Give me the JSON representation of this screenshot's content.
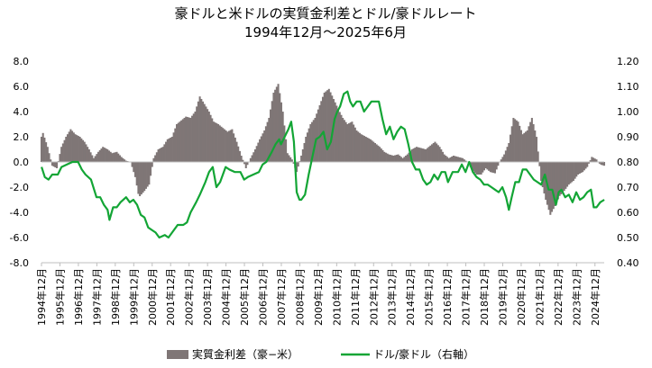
{
  "chart_data": {
    "type": "bar",
    "title": "豪ドルと米ドルの実質金利差とドル/豪ドルレート",
    "subtitle": "1994年12月～2025年6月",
    "left_axis": {
      "ylim": [
        -8,
        8
      ],
      "ticks": [
        "8.0",
        "6.0",
        "4.0",
        "2.0",
        "0.0",
        "-2.0",
        "-4.0",
        "-6.0",
        "-8.0"
      ],
      "tick_values": [
        8,
        6,
        4,
        2,
        0,
        -2,
        -4,
        -6,
        -8
      ]
    },
    "right_axis": {
      "ylim": [
        0.4,
        1.2
      ],
      "ticks": [
        "1.20",
        "1.10",
        "1.00",
        "0.90",
        "0.80",
        "0.70",
        "0.60",
        "0.50",
        "0.40"
      ],
      "tick_values": [
        1.2,
        1.1,
        1.0,
        0.9,
        0.8,
        0.7,
        0.6,
        0.5,
        0.4
      ]
    },
    "x_ticks": [
      "1994年12月",
      "1995年12月",
      "1996年12月",
      "1997年12月",
      "1998年12月",
      "1999年12月",
      "2000年12月",
      "2001年12月",
      "2002年12月",
      "2003年12月",
      "2004年12月",
      "2005年12月",
      "2006年12月",
      "2007年12月",
      "2008年12月",
      "2009年12月",
      "2010年12月",
      "2011年12月",
      "2012年12月",
      "2013年12月",
      "2014年12月",
      "2015年12月",
      "2016年12月",
      "2017年12月",
      "2018年12月",
      "2019年12月",
      "2020年12月",
      "2021年12月",
      "2022年12月",
      "2023年12月",
      "2024年12月"
    ],
    "x_start": 1994.917,
    "x_end": 2025.417,
    "grid": false,
    "legend_position": "bottom",
    "series": [
      {
        "name": "実質金利差（豪−米）",
        "type": "bar",
        "axis": "left",
        "color": "#7f7676",
        "points": [
          [
            1994.92,
            2.0
          ],
          [
            1995.0,
            2.3
          ],
          [
            1995.25,
            1.2
          ],
          [
            1995.5,
            -0.3
          ],
          [
            1995.75,
            -0.5
          ],
          [
            1996.0,
            1.2
          ],
          [
            1996.25,
            2.0
          ],
          [
            1996.5,
            2.6
          ],
          [
            1996.75,
            2.2
          ],
          [
            1997.0,
            2.0
          ],
          [
            1997.25,
            1.6
          ],
          [
            1997.5,
            1.0
          ],
          [
            1997.75,
            0.3
          ],
          [
            1998.0,
            0.8
          ],
          [
            1998.25,
            1.2
          ],
          [
            1998.5,
            1.0
          ],
          [
            1998.75,
            0.7
          ],
          [
            1999.0,
            0.8
          ],
          [
            1999.25,
            0.4
          ],
          [
            1999.5,
            0.1
          ],
          [
            1999.75,
            0.0
          ],
          [
            2000.0,
            -1.2
          ],
          [
            2000.2,
            -2.8
          ],
          [
            2000.5,
            -2.3
          ],
          [
            2000.75,
            -1.8
          ],
          [
            2001.0,
            0.3
          ],
          [
            2001.25,
            1.0
          ],
          [
            2001.5,
            1.2
          ],
          [
            2001.75,
            1.8
          ],
          [
            2002.0,
            2.0
          ],
          [
            2002.25,
            3.0
          ],
          [
            2002.5,
            3.3
          ],
          [
            2002.75,
            3.6
          ],
          [
            2003.0,
            3.5
          ],
          [
            2003.25,
            4.0
          ],
          [
            2003.5,
            5.2
          ],
          [
            2003.75,
            4.6
          ],
          [
            2004.0,
            4.0
          ],
          [
            2004.25,
            3.2
          ],
          [
            2004.5,
            3.0
          ],
          [
            2004.75,
            2.7
          ],
          [
            2005.0,
            2.4
          ],
          [
            2005.25,
            2.6
          ],
          [
            2005.5,
            1.6
          ],
          [
            2005.75,
            0.5
          ],
          [
            2006.0,
            -0.5
          ],
          [
            2006.25,
            0.3
          ],
          [
            2006.5,
            1.0
          ],
          [
            2006.75,
            1.8
          ],
          [
            2007.0,
            2.5
          ],
          [
            2007.25,
            3.5
          ],
          [
            2007.5,
            5.5
          ],
          [
            2007.75,
            6.2
          ],
          [
            2008.0,
            4.0
          ],
          [
            2008.25,
            0.7
          ],
          [
            2008.5,
            0.2
          ],
          [
            2008.75,
            -0.8
          ],
          [
            2009.0,
            0.5
          ],
          [
            2009.25,
            2.0
          ],
          [
            2009.5,
            3.0
          ],
          [
            2009.75,
            3.5
          ],
          [
            2010.0,
            4.5
          ],
          [
            2010.25,
            5.5
          ],
          [
            2010.5,
            5.8
          ],
          [
            2010.75,
            5.0
          ],
          [
            2011.0,
            4.2
          ],
          [
            2011.25,
            3.5
          ],
          [
            2011.5,
            3.0
          ],
          [
            2011.75,
            3.2
          ],
          [
            2012.0,
            2.5
          ],
          [
            2012.25,
            2.2
          ],
          [
            2012.5,
            2.0
          ],
          [
            2012.75,
            1.8
          ],
          [
            2013.0,
            1.5
          ],
          [
            2013.25,
            1.2
          ],
          [
            2013.5,
            0.8
          ],
          [
            2013.75,
            0.6
          ],
          [
            2014.0,
            0.5
          ],
          [
            2014.25,
            0.6
          ],
          [
            2014.5,
            0.3
          ],
          [
            2014.75,
            0.6
          ],
          [
            2015.0,
            1.0
          ],
          [
            2015.25,
            1.2
          ],
          [
            2015.5,
            1.1
          ],
          [
            2015.75,
            1.0
          ],
          [
            2016.0,
            1.3
          ],
          [
            2016.25,
            1.6
          ],
          [
            2016.5,
            1.2
          ],
          [
            2016.75,
            0.6
          ],
          [
            2017.0,
            0.3
          ],
          [
            2017.25,
            0.5
          ],
          [
            2017.5,
            0.4
          ],
          [
            2017.75,
            0.3
          ],
          [
            2018.0,
            0.0
          ],
          [
            2018.25,
            -0.6
          ],
          [
            2018.5,
            -1.0
          ],
          [
            2018.75,
            -1.0
          ],
          [
            2019.0,
            -0.5
          ],
          [
            2019.25,
            -0.8
          ],
          [
            2019.5,
            -0.9
          ],
          [
            2019.75,
            0.0
          ],
          [
            2020.0,
            0.6
          ],
          [
            2020.25,
            1.5
          ],
          [
            2020.5,
            3.5
          ],
          [
            2020.75,
            3.2
          ],
          [
            2021.0,
            2.2
          ],
          [
            2021.25,
            2.5
          ],
          [
            2021.5,
            3.5
          ],
          [
            2021.75,
            2.0
          ],
          [
            2022.0,
            -1.5
          ],
          [
            2022.25,
            -3.0
          ],
          [
            2022.5,
            -4.2
          ],
          [
            2022.75,
            -3.5
          ],
          [
            2023.0,
            -2.7
          ],
          [
            2023.25,
            -2.3
          ],
          [
            2023.5,
            -1.8
          ],
          [
            2023.75,
            -1.5
          ],
          [
            2024.0,
            -1.0
          ],
          [
            2024.25,
            -0.8
          ],
          [
            2024.5,
            -0.4
          ],
          [
            2024.75,
            0.4
          ],
          [
            2025.0,
            0.2
          ],
          [
            2025.2,
            -0.2
          ],
          [
            2025.42,
            -0.3
          ]
        ]
      },
      {
        "name": "ドル/豪ドル（右軸）",
        "type": "line",
        "axis": "right",
        "color": "#13a535",
        "points": [
          [
            1994.92,
            0.78
          ],
          [
            1995.1,
            0.74
          ],
          [
            1995.3,
            0.73
          ],
          [
            1995.5,
            0.75
          ],
          [
            1995.8,
            0.75
          ],
          [
            1996.0,
            0.78
          ],
          [
            1996.3,
            0.79
          ],
          [
            1996.6,
            0.8
          ],
          [
            1996.9,
            0.8
          ],
          [
            1997.1,
            0.77
          ],
          [
            1997.3,
            0.75
          ],
          [
            1997.6,
            0.73
          ],
          [
            1997.9,
            0.66
          ],
          [
            1998.1,
            0.66
          ],
          [
            1998.3,
            0.63
          ],
          [
            1998.5,
            0.61
          ],
          [
            1998.6,
            0.57
          ],
          [
            1998.8,
            0.62
          ],
          [
            1999.0,
            0.62
          ],
          [
            1999.2,
            0.64
          ],
          [
            1999.5,
            0.66
          ],
          [
            1999.7,
            0.64
          ],
          [
            1999.9,
            0.65
          ],
          [
            2000.1,
            0.63
          ],
          [
            2000.3,
            0.59
          ],
          [
            2000.5,
            0.58
          ],
          [
            2000.7,
            0.54
          ],
          [
            2000.9,
            0.53
          ],
          [
            2001.1,
            0.52
          ],
          [
            2001.3,
            0.5
          ],
          [
            2001.6,
            0.51
          ],
          [
            2001.8,
            0.5
          ],
          [
            2002.0,
            0.52
          ],
          [
            2002.3,
            0.55
          ],
          [
            2002.6,
            0.55
          ],
          [
            2002.8,
            0.56
          ],
          [
            2003.0,
            0.6
          ],
          [
            2003.3,
            0.64
          ],
          [
            2003.5,
            0.67
          ],
          [
            2003.8,
            0.72
          ],
          [
            2004.0,
            0.76
          ],
          [
            2004.2,
            0.78
          ],
          [
            2004.4,
            0.7
          ],
          [
            2004.6,
            0.72
          ],
          [
            2004.9,
            0.78
          ],
          [
            2005.1,
            0.77
          ],
          [
            2005.4,
            0.76
          ],
          [
            2005.7,
            0.76
          ],
          [
            2005.9,
            0.73
          ],
          [
            2006.1,
            0.74
          ],
          [
            2006.4,
            0.75
          ],
          [
            2006.7,
            0.76
          ],
          [
            2006.9,
            0.79
          ],
          [
            2007.1,
            0.8
          ],
          [
            2007.4,
            0.84
          ],
          [
            2007.6,
            0.87
          ],
          [
            2007.8,
            0.89
          ],
          [
            2007.9,
            0.87
          ],
          [
            2008.1,
            0.9
          ],
          [
            2008.3,
            0.93
          ],
          [
            2008.45,
            0.96
          ],
          [
            2008.6,
            0.88
          ],
          [
            2008.75,
            0.68
          ],
          [
            2008.9,
            0.65
          ],
          [
            2009.0,
            0.65
          ],
          [
            2009.2,
            0.67
          ],
          [
            2009.4,
            0.75
          ],
          [
            2009.6,
            0.82
          ],
          [
            2009.8,
            0.89
          ],
          [
            2010.0,
            0.9
          ],
          [
            2010.2,
            0.92
          ],
          [
            2010.4,
            0.85
          ],
          [
            2010.6,
            0.88
          ],
          [
            2010.8,
            0.97
          ],
          [
            2010.95,
            1.0
          ],
          [
            2011.1,
            1.02
          ],
          [
            2011.3,
            1.07
          ],
          [
            2011.5,
            1.08
          ],
          [
            2011.65,
            1.04
          ],
          [
            2011.8,
            1.02
          ],
          [
            2012.0,
            1.04
          ],
          [
            2012.2,
            1.04
          ],
          [
            2012.4,
            1.0
          ],
          [
            2012.6,
            1.02
          ],
          [
            2012.8,
            1.04
          ],
          [
            2013.0,
            1.04
          ],
          [
            2013.2,
            1.04
          ],
          [
            2013.4,
            0.97
          ],
          [
            2013.6,
            0.91
          ],
          [
            2013.8,
            0.94
          ],
          [
            2014.0,
            0.89
          ],
          [
            2014.2,
            0.92
          ],
          [
            2014.4,
            0.94
          ],
          [
            2014.6,
            0.93
          ],
          [
            2014.8,
            0.87
          ],
          [
            2015.0,
            0.8
          ],
          [
            2015.2,
            0.77
          ],
          [
            2015.4,
            0.77
          ],
          [
            2015.6,
            0.73
          ],
          [
            2015.8,
            0.71
          ],
          [
            2016.0,
            0.72
          ],
          [
            2016.2,
            0.75
          ],
          [
            2016.4,
            0.73
          ],
          [
            2016.6,
            0.76
          ],
          [
            2016.8,
            0.76
          ],
          [
            2016.95,
            0.72
          ],
          [
            2017.2,
            0.76
          ],
          [
            2017.5,
            0.76
          ],
          [
            2017.7,
            0.79
          ],
          [
            2017.9,
            0.76
          ],
          [
            2018.1,
            0.8
          ],
          [
            2018.3,
            0.76
          ],
          [
            2018.5,
            0.74
          ],
          [
            2018.7,
            0.73
          ],
          [
            2018.9,
            0.71
          ],
          [
            2019.1,
            0.71
          ],
          [
            2019.3,
            0.7
          ],
          [
            2019.5,
            0.69
          ],
          [
            2019.7,
            0.68
          ],
          [
            2019.9,
            0.7
          ],
          [
            2020.1,
            0.66
          ],
          [
            2020.25,
            0.61
          ],
          [
            2020.4,
            0.66
          ],
          [
            2020.6,
            0.72
          ],
          [
            2020.8,
            0.72
          ],
          [
            2021.0,
            0.77
          ],
          [
            2021.2,
            0.77
          ],
          [
            2021.4,
            0.75
          ],
          [
            2021.6,
            0.73
          ],
          [
            2021.8,
            0.72
          ],
          [
            2022.0,
            0.71
          ],
          [
            2022.2,
            0.75
          ],
          [
            2022.4,
            0.69
          ],
          [
            2022.6,
            0.69
          ],
          [
            2022.8,
            0.63
          ],
          [
            2022.95,
            0.68
          ],
          [
            2023.1,
            0.69
          ],
          [
            2023.3,
            0.66
          ],
          [
            2023.5,
            0.67
          ],
          [
            2023.7,
            0.64
          ],
          [
            2023.9,
            0.68
          ],
          [
            2024.1,
            0.65
          ],
          [
            2024.3,
            0.66
          ],
          [
            2024.5,
            0.68
          ],
          [
            2024.7,
            0.69
          ],
          [
            2024.85,
            0.62
          ],
          [
            2025.0,
            0.62
          ],
          [
            2025.2,
            0.64
          ],
          [
            2025.42,
            0.65
          ]
        ]
      }
    ]
  }
}
